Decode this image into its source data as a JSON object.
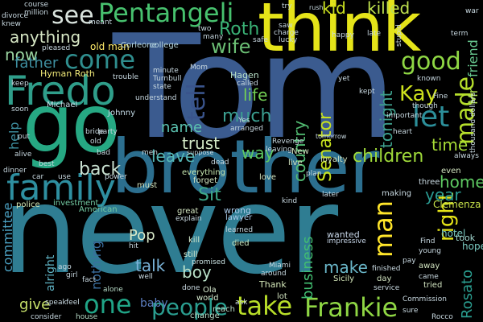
{
  "words": {
    "tom": "Tom",
    "never": "never",
    "brother": "brother",
    "think": "think",
    "go": "go",
    "fredo": "Fredo",
    "family": "family",
    "pentangeli": "Pentangeli",
    "see": "see",
    "frankie": "Frankie",
    "take": "take",
    "one": "one",
    "people": "people",
    "come": "come",
    "good": "good",
    "made": "made",
    "man": "man",
    "right": "right",
    "let": "let",
    "kay": "Kay",
    "wife": "wife",
    "roth": "Roth",
    "tell": "tell",
    "life": "life",
    "much": "much",
    "children": "children",
    "back": "back",
    "sit": "Sit",
    "year": "year",
    "home": "home",
    "time": "time",
    "senator": "Senator",
    "tonight": "tonight",
    "country": "country",
    "business": "business",
    "rosato": "Rosato",
    "kid": "kid",
    "killed": "killed",
    "anything": "anything",
    "now": "now",
    "father": "father",
    "help": "help",
    "trust": "trust",
    "name": "name",
    "leave": "leave",
    "way": "way",
    "talk": "talk",
    "boy": "boy",
    "pop": "Pop",
    "make": "make",
    "give": "give",
    "committee": "committee",
    "alright": "alright",
    "nothing": "nothing",
    "baby": "baby",
    "friend": "friend",
    "mr": "Mr",
    "hotel": "hotel",
    "hope": "hope",
    "clemenza": "Clemenza",
    "took": "took",
    "old_man": "old man",
    "hyman_roth": "Hyman Roth",
    "corleone": "Corleone",
    "college": "college",
    "hagen": "Hagen",
    "michael": "Michael",
    "johnny": "Johnny",
    "american": "American",
    "police": "police",
    "investment": "investment",
    "everything": "everything",
    "wrong": "wrong",
    "lawyer": "lawyer",
    "wanted": "wanted",
    "impressive": "impressive",
    "died": "died",
    "thank": "Thank",
    "sicily": "Sicily",
    "kill": "kill",
    "still": "still",
    "promised": "promised",
    "ola": "Ola",
    "world": "world",
    "reach": "reach",
    "change": "change",
    "house": "house",
    "alone": "alone",
    "lot": "lot",
    "day": "day",
    "service": "service",
    "tried": "tried",
    "came": "came",
    "young": "young",
    "find": "Find",
    "away": "away",
    "finished": "finished",
    "commission": "Commission",
    "rocco": "Rocco",
    "making": "making",
    "three": "three",
    "even": "even",
    "later": "later",
    "loyalty": "loyalty",
    "plan": "plan",
    "live": "live",
    "kind": "kind",
    "love": "love",
    "new": "New",
    "leaving": "leaving",
    "revenge": "Revenge",
    "forget": "forget",
    "dead": "dead",
    "must": "must",
    "great": "great",
    "explain": "explain",
    "power": "power",
    "party": "party",
    "bride": "bride",
    "minute": "minute",
    "turnbull": "Turnbull",
    "state": "state",
    "understand": "understand",
    "trouble": "trouble",
    "called": "called",
    "yes": "Yes",
    "arranged": "arranged",
    "tomorrow": "tomorrow",
    "important": "important",
    "though": "though",
    "heart": "heart",
    "known": "known",
    "fine": "Fine",
    "thousand_dollars": "thousand dollars",
    "always": "always",
    "stupid": "stupid",
    "term": "term",
    "late": "late",
    "happy": "happy",
    "lucky": "lucky",
    "saw": "saw",
    "charge": "charge",
    "safe": "safe",
    "many": "many",
    "two": "two",
    "meant": "meant",
    "knew": "knew",
    "divorce": "divorce",
    "course": "course",
    "million": "million",
    "try": "try",
    "rush": "rush",
    "war": "war",
    "keep": "keep",
    "soon": "soon",
    "put": "put",
    "alive": "alive",
    "dinner": "dinner",
    "car": "car",
    "best": "best",
    "use": "use",
    "ago": "ago",
    "girl": "girl",
    "well": "well",
    "consider": "consider",
    "speak": "speak",
    "feel": "feel",
    "done": "done",
    "ask": "ask",
    "learned": "learned",
    "old": "old",
    "pleased": "pleased",
    "mom": "Mom",
    "miami": "Miami",
    "around": "around",
    "hit": "hit",
    "men": "men",
    "suppose": "suppose",
    "yet": "yet",
    "kept": "kept",
    "bad": "bad",
    "fact": "fact",
    "pay": "pay",
    "sure": "sure"
  }
}
